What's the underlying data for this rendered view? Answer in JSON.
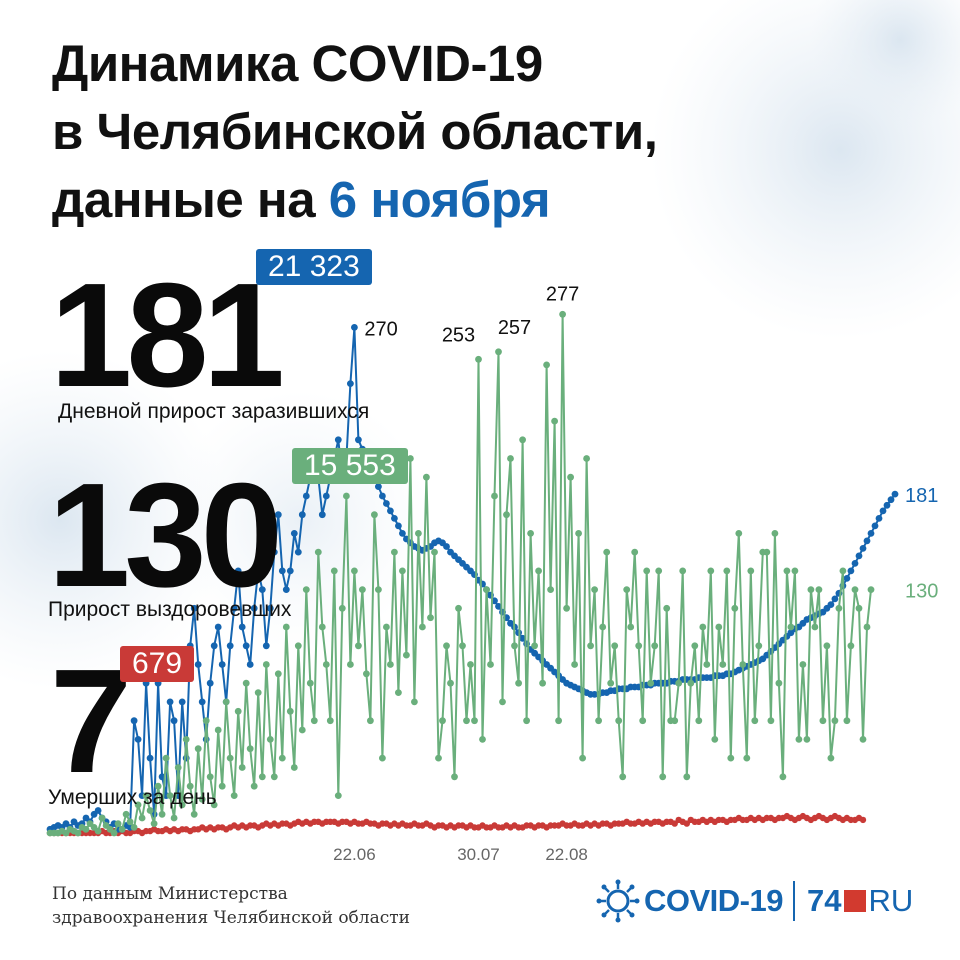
{
  "header": {
    "title_line1": "Динамика COVID-19",
    "title_line2": "в Челябинской области,",
    "title_line3_prefix": "данные на",
    "title_date": "6 ноября"
  },
  "stats": {
    "cases": {
      "value": "181",
      "total": "21 323",
      "caption": "Дневной прирост заразившихся"
    },
    "recovered": {
      "value": "130",
      "total": "15 553",
      "caption": "Прирост выздоровевших"
    },
    "deaths": {
      "value": "7",
      "total": "679",
      "caption": "Умерших за день"
    }
  },
  "footer": {
    "source_line1": "По данным Министерства",
    "source_line2": "здравоохранения Челябинской области",
    "logo_text": "COVID-19",
    "logo_brand": "74",
    "logo_ru": "RU"
  },
  "colors": {
    "cases": "#1565b0",
    "recovered": "#6aaf7c",
    "deaths": "#c93a37",
    "accent": "#1565b0"
  },
  "chart_data": {
    "type": "line",
    "x_tick_labels": [
      "22.06",
      "30.07",
      "22.08"
    ],
    "ylim": [
      0,
      290
    ],
    "grid": false,
    "series": [
      {
        "name": "Дневной прирост заразившихся",
        "key": "cases",
        "values": [
          2,
          3,
          4,
          3,
          5,
          3,
          6,
          4,
          5,
          8,
          6,
          10,
          12,
          8,
          6,
          3,
          5,
          2,
          2,
          4,
          3,
          60,
          50,
          20,
          80,
          40,
          10,
          80,
          30,
          20,
          70,
          60,
          20,
          70,
          40,
          100,
          120,
          90,
          70,
          50,
          80,
          100,
          110,
          90,
          70,
          100,
          120,
          140,
          110,
          100,
          90,
          120,
          140,
          130,
          100,
          120,
          150,
          170,
          140,
          130,
          140,
          160,
          150,
          170,
          180,
          190,
          200,
          190,
          170,
          180,
          190,
          200,
          210,
          190,
          200,
          240,
          270,
          210,
          205,
          200,
          195,
          190,
          185,
          180,
          176,
          172,
          168,
          164,
          160,
          157,
          155,
          153,
          152,
          151,
          152,
          153,
          155,
          156,
          155,
          153,
          150,
          148,
          146,
          144,
          142,
          140,
          138,
          135,
          133,
          130,
          127,
          124,
          121,
          118,
          115,
          112,
          110,
          107,
          104,
          101,
          98,
          96,
          94,
          92,
          90,
          88,
          86,
          84,
          82,
          80,
          79,
          78,
          77,
          76,
          75,
          74,
          74,
          74,
          75,
          75,
          76,
          76,
          77,
          77,
          77,
          78,
          78,
          78,
          79,
          79,
          79,
          80,
          80,
          80,
          80,
          81,
          81,
          81,
          82,
          82,
          82,
          82,
          83,
          83,
          83,
          83,
          84,
          84,
          84,
          85,
          85,
          86,
          87,
          88,
          89,
          90,
          91,
          92,
          93,
          95,
          97,
          99,
          101,
          103,
          105,
          107,
          109,
          110,
          112,
          114,
          115,
          116,
          117,
          118,
          120,
          122,
          125,
          128,
          132,
          136,
          140,
          144,
          148,
          152,
          156,
          160,
          164,
          168,
          172,
          175,
          178,
          181
        ]
      },
      {
        "name": "Прирост выздоровевших",
        "key": "recovered",
        "values": [
          0,
          0,
          0,
          1,
          0,
          2,
          1,
          0,
          3,
          2,
          5,
          3,
          1,
          8,
          4,
          2,
          0,
          5,
          2,
          10,
          6,
          3,
          15,
          8,
          20,
          12,
          5,
          25,
          10,
          40,
          20,
          8,
          35,
          15,
          50,
          25,
          10,
          45,
          18,
          60,
          30,
          15,
          55,
          25,
          70,
          40,
          20,
          65,
          35,
          80,
          45,
          25,
          75,
          30,
          90,
          50,
          30,
          85,
          40,
          110,
          65,
          35,
          100,
          55,
          130,
          80,
          60,
          150,
          110,
          90,
          60,
          140,
          20,
          120,
          180,
          90,
          140,
          100,
          130,
          85,
          60,
          170,
          130,
          40,
          110,
          90,
          150,
          75,
          140,
          95,
          200,
          70,
          160,
          110,
          190,
          115,
          150,
          40,
          60,
          100,
          80,
          30,
          120,
          100,
          60,
          90,
          60,
          253,
          50,
          130,
          90,
          180,
          257,
          70,
          170,
          200,
          100,
          80,
          210,
          60,
          160,
          100,
          140,
          80,
          250,
          130,
          220,
          60,
          277,
          120,
          190,
          90,
          160,
          40,
          200,
          100,
          130,
          60,
          110,
          150,
          80,
          100,
          60,
          30,
          130,
          110,
          150,
          100,
          60,
          140,
          80,
          100,
          140,
          30,
          120,
          60,
          60,
          80,
          140,
          30,
          80,
          100,
          60,
          110,
          90,
          140,
          50,
          110,
          90,
          140,
          40,
          120,
          160,
          90,
          40,
          140,
          60,
          100,
          150,
          150,
          60,
          160,
          80,
          30,
          140,
          110,
          140,
          50,
          90,
          50,
          130,
          110,
          130,
          60,
          100,
          40,
          60,
          120,
          140,
          60,
          100,
          130,
          120,
          50,
          110,
          130
        ]
      },
      {
        "name": "Умерших за день",
        "key": "deaths",
        "values": [
          0,
          0,
          0,
          0,
          0,
          0,
          0,
          0,
          0,
          0,
          0,
          0,
          0,
          1,
          0,
          0,
          1,
          0,
          1,
          0,
          0,
          1,
          1,
          0,
          1,
          1,
          2,
          1,
          1,
          2,
          1,
          2,
          1,
          2,
          2,
          1,
          2,
          2,
          3,
          2,
          3,
          2,
          3,
          3,
          2,
          3,
          4,
          3,
          4,
          3,
          4,
          4,
          3,
          4,
          5,
          4,
          5,
          4,
          5,
          5,
          4,
          5,
          6,
          5,
          6,
          5,
          6,
          6,
          5,
          6,
          6,
          6,
          5,
          6,
          6,
          5,
          6,
          5,
          5,
          6,
          5,
          5,
          4,
          5,
          5,
          4,
          5,
          4,
          5,
          4,
          4,
          5,
          4,
          4,
          5,
          4,
          3,
          4,
          4,
          3,
          4,
          3,
          4,
          4,
          3,
          4,
          3,
          3,
          4,
          3,
          3,
          4,
          3,
          3,
          4,
          3,
          4,
          3,
          3,
          4,
          4,
          3,
          4,
          4,
          3,
          4,
          4,
          4,
          5,
          4,
          4,
          5,
          4,
          4,
          5,
          4,
          5,
          4,
          5,
          5,
          4,
          5,
          5,
          5,
          6,
          5,
          5,
          6,
          5,
          6,
          5,
          6,
          6,
          5,
          6,
          6,
          5,
          7,
          6,
          5,
          7,
          6,
          6,
          7,
          6,
          7,
          6,
          7,
          7,
          6,
          7,
          7,
          8,
          7,
          7,
          8,
          7,
          8,
          7,
          8,
          8,
          7,
          8,
          8,
          9,
          8,
          7,
          8,
          9,
          8,
          7,
          8,
          9,
          8,
          7,
          8,
          9,
          8,
          7,
          8,
          7,
          7,
          8,
          7
        ]
      }
    ],
    "annotations": [
      "270",
      "253",
      "257",
      "277",
      "181",
      "130"
    ]
  }
}
